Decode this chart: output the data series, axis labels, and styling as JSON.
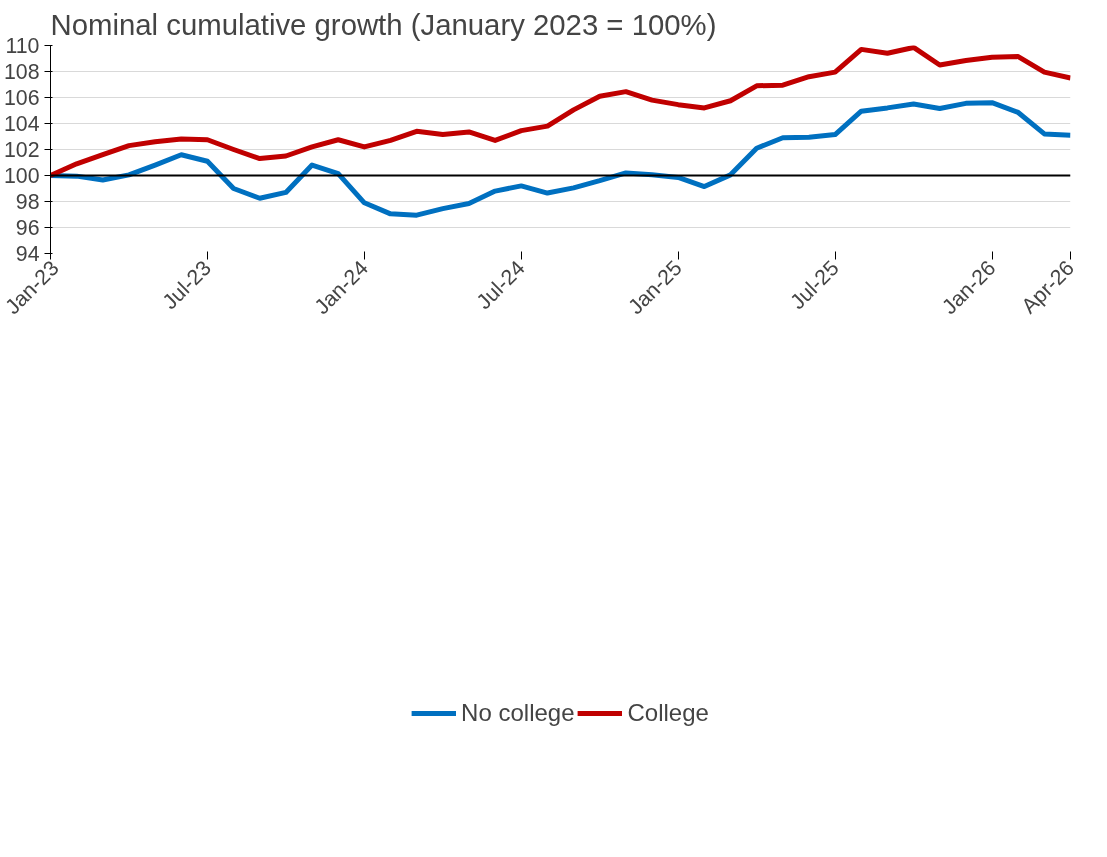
{
  "chart_data": {
    "type": "line",
    "title": "Nominal cumulative growth (January 2023 = 100%)",
    "x": [
      "2023-01",
      "2023-02",
      "2023-03",
      "2023-04",
      "2023-05",
      "2023-06",
      "2023-07",
      "2023-08",
      "2023-09",
      "2023-10",
      "2023-11",
      "2023-12",
      "2024-01",
      "2024-02",
      "2024-03",
      "2024-04",
      "2024-05",
      "2024-06",
      "2024-07",
      "2024-08",
      "2024-09",
      "2024-10",
      "2024-11",
      "2024-12",
      "2025-01",
      "2025-02",
      "2025-03",
      "2025-04",
      "2025-05",
      "2025-06",
      "2025-07",
      "2025-08",
      "2025-09",
      "2025-10",
      "2025-11",
      "2025-12",
      "2026-01",
      "2026-02",
      "2026-03",
      "2026-04"
    ],
    "series": [
      {
        "name": "No college",
        "color": "#0070c0",
        "values": [
          100,
          99.95,
          99.65,
          100.05,
          100.8,
          101.6,
          101.1,
          99.0,
          98.25,
          98.7,
          100.8,
          100.15,
          97.9,
          97.05,
          96.95,
          97.45,
          97.85,
          98.8,
          99.2,
          98.65,
          99.05,
          99.6,
          100.2,
          100.05,
          99.85,
          99.15,
          100.05,
          102.1,
          102.9,
          102.95,
          103.15,
          104.95,
          105.2,
          105.5,
          105.15,
          105.55,
          105.6,
          104.85,
          103.2,
          103.1
        ]
      },
      {
        "name": "College",
        "color": "#c00000",
        "values": [
          100,
          100.9,
          101.6,
          102.3,
          102.6,
          102.8,
          102.75,
          102.0,
          101.3,
          101.5,
          102.2,
          102.75,
          102.2,
          102.7,
          103.4,
          103.15,
          103.35,
          102.7,
          103.45,
          103.8,
          105.05,
          106.1,
          106.45,
          105.8,
          105.45,
          105.2,
          105.75,
          106.9,
          106.95,
          107.6,
          107.95,
          109.7,
          109.4,
          109.85,
          108.5,
          108.85,
          109.1,
          109.15,
          107.95,
          107.5
        ]
      }
    ],
    "xlim": [
      "2023-01",
      "2026-04"
    ],
    "xticks": [
      {
        "value": "2023-01",
        "label": "Jan-23"
      },
      {
        "value": "2023-07",
        "label": "Jul-23"
      },
      {
        "value": "2024-01",
        "label": "Jan-24"
      },
      {
        "value": "2024-07",
        "label": "Jul-24"
      },
      {
        "value": "2025-01",
        "label": "Jan-25"
      },
      {
        "value": "2025-07",
        "label": "Jul-25"
      },
      {
        "value": "2026-01",
        "label": "Jan-26"
      },
      {
        "value": "2026-04",
        "label": "Apr-26"
      }
    ],
    "ylim": [
      94,
      110
    ],
    "yticks": [
      94,
      96,
      98,
      100,
      102,
      104,
      106,
      108,
      110
    ],
    "ref_lines": [
      {
        "axis": "y",
        "value": 100,
        "color": "#000000"
      }
    ],
    "grid": "y",
    "legend": "bottom",
    "marker": "none",
    "line_style": "solid"
  }
}
